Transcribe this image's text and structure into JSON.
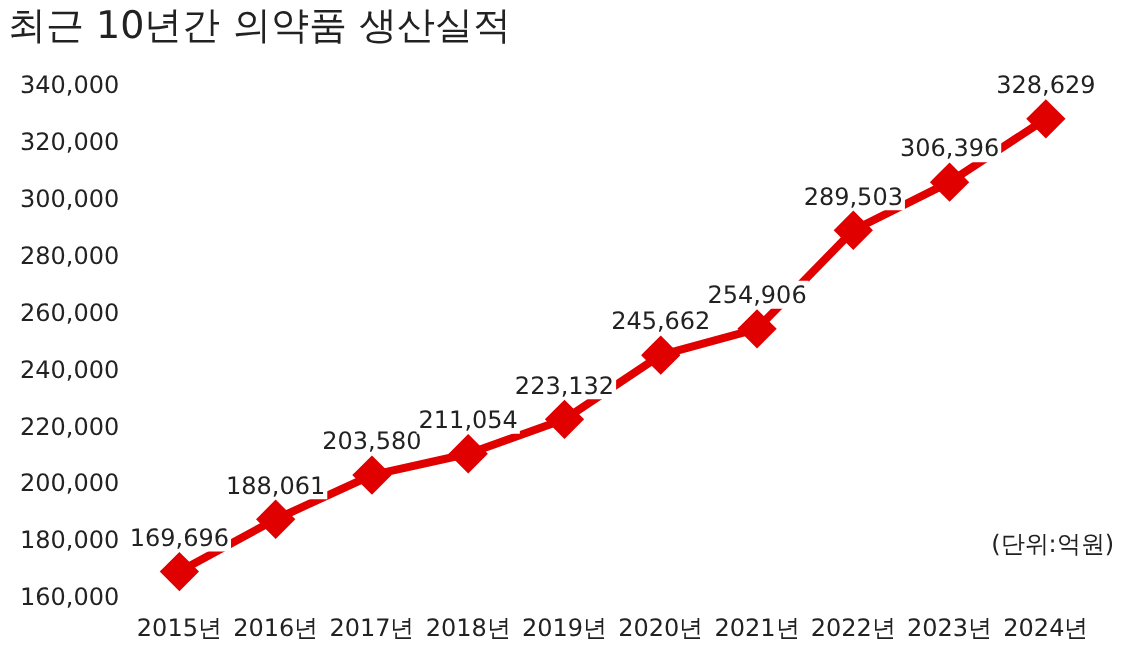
{
  "chart_data": {
    "type": "line",
    "title": "최근 10년간 의약품 생산실적",
    "annotations": [
      "(단위:억원)"
    ],
    "categories": [
      "2015년",
      "2016년",
      "2017년",
      "2018년",
      "2019년",
      "2020년",
      "2021년",
      "2022년",
      "2023년",
      "2024년"
    ],
    "values": [
      169696,
      188061,
      203580,
      211054,
      223132,
      245662,
      254906,
      289503,
      306396,
      328629
    ],
    "value_labels": [
      "169,696",
      "188,061",
      "203,580",
      "211,054",
      "223,132",
      "245,662",
      "254,906",
      "289,503",
      "306,396",
      "328,629"
    ],
    "color": "#e00000",
    "marker": "diamond",
    "line_style": "solid",
    "grid": false,
    "legend": false,
    "ylim": [
      160000,
      340000
    ],
    "yticks": [
      {
        "value": 160000,
        "label": "160,000"
      },
      {
        "value": 180000,
        "label": "180,000"
      },
      {
        "value": 200000,
        "label": "200,000"
      },
      {
        "value": 220000,
        "label": "220,000"
      },
      {
        "value": 240000,
        "label": "240,000"
      },
      {
        "value": 260000,
        "label": "260,000"
      },
      {
        "value": 280000,
        "label": "280,000"
      },
      {
        "value": 300000,
        "label": "300,000"
      },
      {
        "value": 320000,
        "label": "320,000"
      },
      {
        "value": 340000,
        "label": "340,000"
      }
    ]
  }
}
